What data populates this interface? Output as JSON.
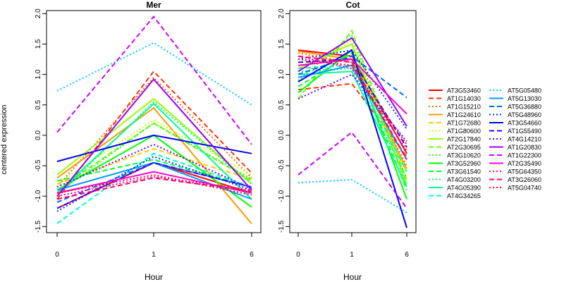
{
  "figure": {
    "ylabel": "centered expression",
    "xlabel": "Hour"
  },
  "chart_data": [
    {
      "type": "line",
      "title": "Mer",
      "xlabel": "Hour",
      "ylabel": "centered expression",
      "x": [
        "0",
        "1",
        "6"
      ],
      "ylim": [
        -1.6,
        2.05
      ],
      "yticks": [
        -1.5,
        -1.0,
        -0.5,
        0.0,
        0.5,
        1.0,
        1.5,
        2.0
      ],
      "series": [
        {
          "name": "AT3G53460",
          "values": [
            -1.2,
            -0.45,
            -0.95
          ]
        },
        {
          "name": "AT1G14030",
          "values": [
            -1.05,
            1.05,
            -0.62
          ]
        },
        {
          "name": "AT1G15210",
          "values": [
            -0.85,
            0.95,
            -0.7
          ]
        },
        {
          "name": "AT1G24610",
          "values": [
            -0.7,
            0.45,
            -1.45
          ]
        },
        {
          "name": "AT1G72680",
          "values": [
            -0.8,
            -0.22,
            -0.72
          ]
        },
        {
          "name": "AT1G80600",
          "values": [
            -0.8,
            0.25,
            -0.65
          ]
        },
        {
          "name": "AT2G17840",
          "values": [
            -0.65,
            0.6,
            -0.8
          ]
        },
        {
          "name": "AT2G30695",
          "values": [
            -0.9,
            0.2,
            -0.75
          ]
        },
        {
          "name": "AT3G10620",
          "values": [
            -0.95,
            0.2,
            -0.72
          ]
        },
        {
          "name": "AT3G52960",
          "values": [
            -0.9,
            0.0,
            -1.18
          ]
        },
        {
          "name": "AT3G61540",
          "values": [
            -0.75,
            -0.4,
            -0.85
          ]
        },
        {
          "name": "AT4G03200",
          "values": [
            -1.0,
            0.55,
            -0.8
          ]
        },
        {
          "name": "AT4G05390",
          "values": [
            -0.95,
            0.52,
            -1.05
          ]
        },
        {
          "name": "AT4G34265",
          "values": [
            -1.45,
            -0.3,
            -0.85
          ]
        },
        {
          "name": "AT5G05480",
          "values": [
            0.73,
            1.52,
            0.5
          ]
        },
        {
          "name": "AT5G13030",
          "values": [
            -0.9,
            -0.45,
            -1.05
          ]
        },
        {
          "name": "AT5G36880",
          "values": [
            -1.1,
            -0.45,
            -0.85
          ]
        },
        {
          "name": "AT5G48960",
          "values": [
            -1.25,
            -0.35,
            -0.9
          ]
        },
        {
          "name": "AT3G54660",
          "values": [
            -0.43,
            0.0,
            -0.3
          ]
        },
        {
          "name": "AT1G55490",
          "values": [
            -1.2,
            -0.45,
            -0.85
          ]
        },
        {
          "name": "AT4G14210",
          "values": [
            -0.85,
            -0.15,
            -0.88
          ]
        },
        {
          "name": "AT1G20830",
          "values": [
            -1.0,
            0.92,
            -0.9
          ]
        },
        {
          "name": "AT1G22300",
          "values": [
            0.05,
            1.95,
            -0.15
          ]
        },
        {
          "name": "AT2G35490",
          "values": [
            -0.95,
            -0.6,
            -0.95
          ]
        },
        {
          "name": "AT5G64350",
          "values": [
            -1.0,
            -0.68,
            -0.9
          ]
        },
        {
          "name": "AT3G26060",
          "values": [
            -1.05,
            -0.7,
            -0.92
          ]
        },
        {
          "name": "AT5G04740",
          "values": [
            -0.95,
            -0.65,
            -0.98
          ]
        }
      ]
    },
    {
      "type": "line",
      "title": "Cot",
      "xlabel": "Hour",
      "x": [
        "0",
        "1",
        "6"
      ],
      "ylim": [
        -1.6,
        2.05
      ],
      "yticks": [
        -1.5,
        -1.0,
        -0.5,
        0.0,
        0.5,
        1.0,
        1.5,
        2.0
      ],
      "series": [
        {
          "name": "AT3G53460",
          "values": [
            1.4,
            1.3,
            -0.3
          ]
        },
        {
          "name": "AT1G14030",
          "values": [
            0.75,
            0.85,
            -0.35
          ]
        },
        {
          "name": "AT1G15210",
          "values": [
            1.35,
            1.2,
            -0.5
          ]
        },
        {
          "name": "AT1G24610",
          "values": [
            1.38,
            1.25,
            -0.55
          ]
        },
        {
          "name": "AT1G72680",
          "values": [
            1.0,
            1.3,
            -0.6
          ]
        },
        {
          "name": "AT1G80600",
          "values": [
            1.05,
            1.55,
            -0.7
          ]
        },
        {
          "name": "AT2G17840",
          "values": [
            1.1,
            1.5,
            -0.8
          ]
        },
        {
          "name": "AT2G30695",
          "values": [
            0.6,
            1.72,
            -0.75
          ]
        },
        {
          "name": "AT3G10620",
          "values": [
            0.9,
            1.65,
            -0.85
          ]
        },
        {
          "name": "AT3G52960",
          "values": [
            0.7,
            1.4,
            -1.05
          ]
        },
        {
          "name": "AT3G61540",
          "values": [
            0.8,
            1.35,
            -0.9
          ]
        },
        {
          "name": "AT4G03200",
          "values": [
            1.05,
            1.1,
            -0.7
          ]
        },
        {
          "name": "AT4G05390",
          "values": [
            1.0,
            1.05,
            -0.85
          ]
        },
        {
          "name": "AT4G34265",
          "values": [
            1.1,
            1.15,
            -0.6
          ]
        },
        {
          "name": "AT5G05480",
          "values": [
            -0.78,
            -0.73,
            -1.27
          ]
        },
        {
          "name": "AT5G13030",
          "values": [
            0.95,
            1.15,
            -0.4
          ]
        },
        {
          "name": "AT5G36880",
          "values": [
            1.0,
            1.3,
            0.62
          ]
        },
        {
          "name": "AT5G48960",
          "values": [
            1.25,
            1.4,
            0.1
          ]
        },
        {
          "name": "AT3G54660",
          "values": [
            0.88,
            1.4,
            -1.52
          ]
        },
        {
          "name": "AT1G55490",
          "values": [
            1.2,
            1.25,
            -0.2
          ]
        },
        {
          "name": "AT4G14210",
          "values": [
            0.6,
            1.0,
            -0.1
          ]
        },
        {
          "name": "AT1G20830",
          "values": [
            1.05,
            1.6,
            0.15
          ]
        },
        {
          "name": "AT1G22300",
          "values": [
            -0.65,
            0.05,
            -1.2
          ]
        },
        {
          "name": "AT2G35490",
          "values": [
            1.15,
            1.25,
            0.35
          ]
        },
        {
          "name": "AT5G64350",
          "values": [
            1.3,
            1.1,
            -0.25
          ]
        },
        {
          "name": "AT3G26060",
          "values": [
            1.3,
            1.2,
            -0.4
          ]
        },
        {
          "name": "AT5G04740",
          "values": [
            1.25,
            1.15,
            -0.15
          ]
        }
      ]
    }
  ],
  "legend": {
    "placement": "right",
    "columns": [
      [
        {
          "name": "AT3G53460",
          "color": "#ff0000",
          "dash": "solid"
        },
        {
          "name": "AT1G14030",
          "color": "#ff3300",
          "dash": "dashed"
        },
        {
          "name": "AT1G15210",
          "color": "#ff6600",
          "dash": "dotted"
        },
        {
          "name": "AT1G24610",
          "color": "#ff9900",
          "dash": "solid"
        },
        {
          "name": "AT1G72680",
          "color": "#ffcc00",
          "dash": "dashed"
        },
        {
          "name": "AT1G80600",
          "color": "#ccff00",
          "dash": "dotted"
        },
        {
          "name": "AT2G17840",
          "color": "#99ff00",
          "dash": "solid"
        },
        {
          "name": "AT2G30695",
          "color": "#66ff00",
          "dash": "dashed"
        },
        {
          "name": "AT3G10620",
          "color": "#33ff00",
          "dash": "dotted"
        },
        {
          "name": "AT3G52960",
          "color": "#00ff00",
          "dash": "solid"
        },
        {
          "name": "AT3G61540",
          "color": "#00ff33",
          "dash": "dashed"
        },
        {
          "name": "AT4G03200",
          "color": "#00ff66",
          "dash": "dotted"
        },
        {
          "name": "AT4G05390",
          "color": "#00ff99",
          "dash": "solid"
        },
        {
          "name": "AT4G34265",
          "color": "#00ffcc",
          "dash": "dashed"
        }
      ],
      [
        {
          "name": "AT5G05480",
          "color": "#00ccff",
          "dash": "dotted"
        },
        {
          "name": "AT5G13030",
          "color": "#0099ff",
          "dash": "solid"
        },
        {
          "name": "AT5G36880",
          "color": "#0066ff",
          "dash": "dashed"
        },
        {
          "name": "AT5G48960",
          "color": "#0033ff",
          "dash": "dotted"
        },
        {
          "name": "AT3G54660",
          "color": "#0000ff",
          "dash": "solid"
        },
        {
          "name": "AT1G55490",
          "color": "#3300ff",
          "dash": "dashed"
        },
        {
          "name": "AT4G14210",
          "color": "#6600ff",
          "dash": "dotted"
        },
        {
          "name": "AT1G20830",
          "color": "#9900ff",
          "dash": "solid"
        },
        {
          "name": "AT1G22300",
          "color": "#cc00ff",
          "dash": "dashed"
        },
        {
          "name": "AT2G35490",
          "color": "#ff00cc",
          "dash": "solid"
        },
        {
          "name": "AT5G64350",
          "color": "#ff0099",
          "dash": "dotted"
        },
        {
          "name": "AT3G26060",
          "color": "#ff0066",
          "dash": "dashed"
        },
        {
          "name": "AT5G04740",
          "color": "#ff0033",
          "dash": "dotted"
        }
      ]
    ]
  }
}
